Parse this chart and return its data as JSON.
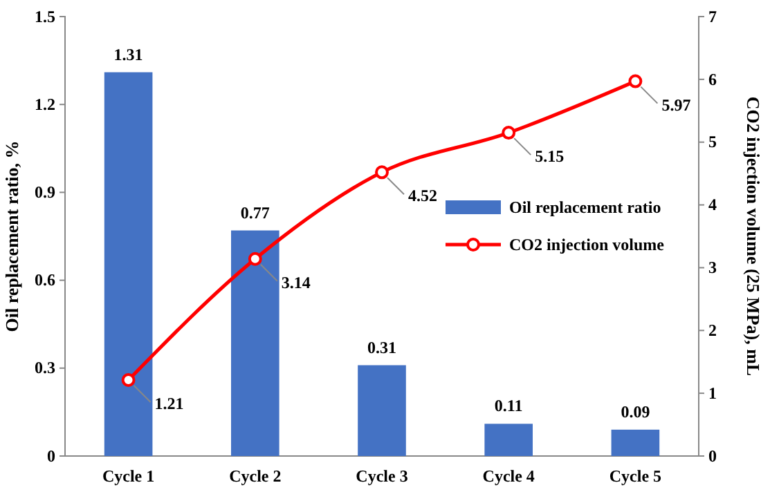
{
  "chart_data": {
    "type": "bar",
    "categories": [
      "Cycle 1",
      "Cycle 2",
      "Cycle 3",
      "Cycle 4",
      "Cycle 5"
    ],
    "series": [
      {
        "name": "Oil replacement ratio",
        "color": "#4472c4",
        "values": [
          1.31,
          0.77,
          0.31,
          0.11,
          0.09
        ]
      },
      {
        "name": "CO2 injection volume",
        "type": "line",
        "axis": "y2",
        "color": "#ff0000",
        "marker": "circle",
        "values": [
          1.21,
          3.14,
          4.52,
          5.15,
          5.97
        ]
      }
    ],
    "ylabel": "Oil replacement ratio, %",
    "y2label": "CO2 injection volume (25 MPa), mL",
    "ylim": [
      0,
      1.5
    ],
    "yticks": [
      0,
      0.3,
      0.6,
      0.9,
      1.2,
      1.5
    ],
    "y2lim": [
      0,
      7
    ],
    "y2ticks": [
      0,
      1,
      2,
      3,
      4,
      5,
      6,
      7
    ],
    "data_labels": true,
    "legend": "right",
    "grid": false
  }
}
